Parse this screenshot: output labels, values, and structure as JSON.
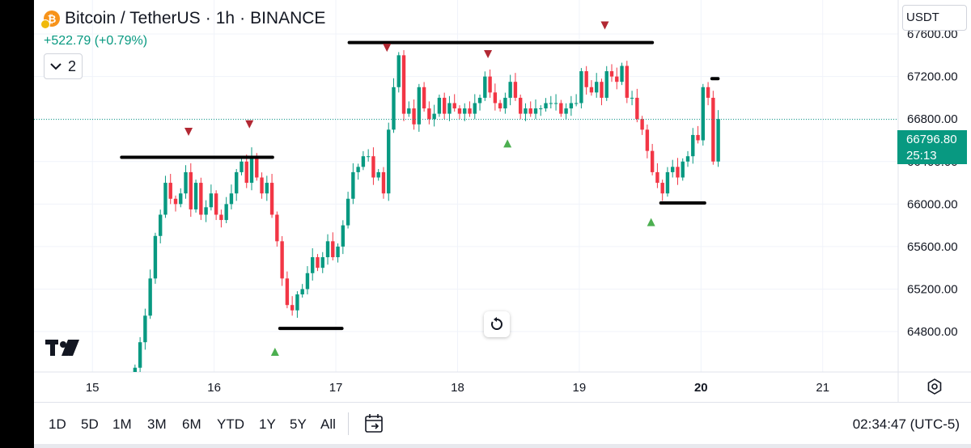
{
  "header": {
    "symbol": "Bitcoin / TetherUS",
    "separator": "·",
    "interval": "1h",
    "exchange": "BINANCE",
    "change": "+522.79 (+0.79%)",
    "indicators_count": "2",
    "currency": "USDT"
  },
  "price_axis": {
    "labels": [
      "67600.00",
      "67200.00",
      "66800.00",
      "66400.00",
      "66000.00",
      "65600.00",
      "65200.00",
      "64800.00"
    ],
    "last_price": "66796.80",
    "countdown": "25:13"
  },
  "time_axis": {
    "labels": [
      "15",
      "16",
      "17",
      "18",
      "19",
      "20",
      "21"
    ],
    "bold_label": "20"
  },
  "toolbar": {
    "ranges": [
      "1D",
      "5D",
      "1M",
      "3M",
      "6M",
      "YTD",
      "1Y",
      "5Y",
      "All"
    ],
    "clock": "02:34:47 (UTC-5)"
  },
  "colors": {
    "up": "#089981",
    "down": "#f23645",
    "marker_down": "#b22833",
    "marker_up": "#4caf50",
    "line": "#000000"
  },
  "chart_data": {
    "type": "candlestick",
    "title": "Bitcoin / TetherUS · 1h · BINANCE",
    "xlabel": "",
    "ylabel": "",
    "ylim": [
      64420,
      67920
    ],
    "xlim": [
      14.52,
      21.62
    ],
    "candle_interval_hours": 1,
    "candles_start": 15.35,
    "closes": [
      64460,
      64700,
      64950,
      65300,
      65700,
      65900,
      66200,
      66050,
      66000,
      66100,
      66300,
      65950,
      66200,
      65900,
      65970,
      66100,
      65900,
      65850,
      66000,
      66100,
      66300,
      66400,
      66200,
      66450,
      66250,
      66100,
      66200,
      65900,
      65650,
      65300,
      65050,
      65000,
      65150,
      65200,
      65350,
      65500,
      65400,
      65500,
      65650,
      65500,
      65600,
      65800,
      66050,
      66300,
      66350,
      66450,
      66450,
      66250,
      66300,
      66100,
      66700,
      67100,
      67400,
      66850,
      66900,
      66750,
      67100,
      66900,
      66800,
      66850,
      67000,
      66850,
      66950,
      66900,
      66850,
      66900,
      66850,
      66950,
      67000,
      67200,
      67050,
      66950,
      66900,
      67000,
      67150,
      67000,
      66850,
      66900,
      66850,
      66900,
      66900,
      66950,
      66950,
      66950,
      66850,
      66900,
      66950,
      66950,
      67250,
      67100,
      67050,
      67150,
      67000,
      67250,
      67200,
      67150,
      67300,
      67000,
      67000,
      66800,
      66700,
      66500,
      66300,
      66200,
      66100,
      66300,
      66350,
      66250,
      66400,
      66450,
      66650,
      66600,
      67100,
      67000,
      66400,
      66800
    ],
    "drawings": {
      "resistance_lines": [
        {
          "x_start": 15.24,
          "x_end": 16.48,
          "y": 66440
        },
        {
          "x_start": 17.11,
          "x_end": 19.6,
          "y": 67520
        }
      ],
      "support_lines": [
        {
          "x_start": 16.54,
          "x_end": 17.05,
          "y": 64830
        },
        {
          "x_start": 19.67,
          "x_end": 20.03,
          "y": 66010
        },
        {
          "x_start": 20.09,
          "x_end": 20.14,
          "y": 67180
        }
      ],
      "swing_high_markers": [
        {
          "x": 15.79,
          "y": 66680
        },
        {
          "x": 16.29,
          "y": 66750
        },
        {
          "x": 17.42,
          "y": 67470
        },
        {
          "x": 18.25,
          "y": 67410
        },
        {
          "x": 19.21,
          "y": 67680
        }
      ],
      "swing_low_markers": [
        {
          "x": 16.5,
          "y": 64610
        },
        {
          "x": 18.41,
          "y": 66570
        },
        {
          "x": 19.59,
          "y": 65830
        }
      ]
    }
  }
}
